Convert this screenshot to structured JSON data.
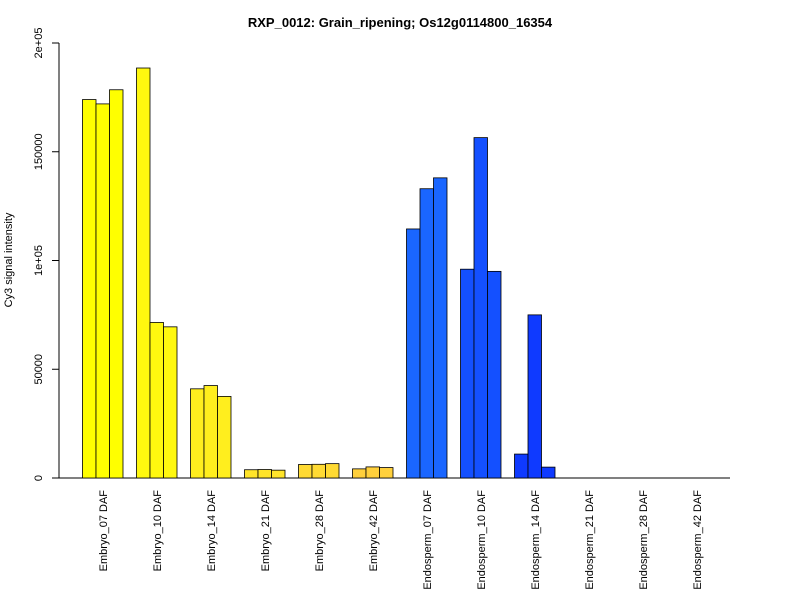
{
  "chart_data": {
    "type": "bar",
    "title": "RXP_0012: Grain_ripening; Os12g0114800_16354",
    "xlabel": "",
    "ylabel": "Cy3 signal intensity",
    "ylim": [
      0,
      200000
    ],
    "yticks": [
      {
        "value": 0,
        "label": "0"
      },
      {
        "value": 50000,
        "label": "50000"
      },
      {
        "value": 100000,
        "label": "1e+05"
      },
      {
        "value": 150000,
        "label": "150000"
      },
      {
        "value": 200000,
        "label": "2e+05"
      }
    ],
    "grid": false,
    "legend": "none",
    "groups": [
      {
        "label": "Embryo_07 DAF",
        "values": [
          174000,
          172000,
          178500
        ],
        "color": "#FFFF00"
      },
      {
        "label": "Embryo_10 DAF",
        "values": [
          188500,
          71500,
          69500
        ],
        "color": "#FFF80F"
      },
      {
        "label": "Embryo_14 DAF",
        "values": [
          41000,
          42500,
          37500
        ],
        "color": "#FFEE1E"
      },
      {
        "label": "Embryo_21 DAF",
        "values": [
          3800,
          3900,
          3600
        ],
        "color": "#FFE42A"
      },
      {
        "label": "Embryo_28 DAF",
        "values": [
          6200,
          6300,
          6600
        ],
        "color": "#FFDA33"
      },
      {
        "label": "Embryo_42 DAF",
        "values": [
          4200,
          5100,
          4800
        ],
        "color": "#FFD03C"
      },
      {
        "label": "Endosperm_07 DAF",
        "values": [
          114500,
          133000,
          138000
        ],
        "color": "#1A66FF"
      },
      {
        "label": "Endosperm_10 DAF",
        "values": [
          96000,
          156500,
          95000
        ],
        "color": "#1450FF"
      },
      {
        "label": "Endosperm_14 DAF",
        "values": [
          11000,
          75000,
          5000
        ],
        "color": "#0F3AFF"
      },
      {
        "label": "Endosperm_21 DAF",
        "values": [
          0,
          0,
          0
        ],
        "color": "#0A2AFF"
      },
      {
        "label": "Endosperm_28 DAF",
        "values": [
          0,
          0,
          0
        ],
        "color": "#0A2AFF"
      },
      {
        "label": "Endosperm_42 DAF",
        "values": [
          0,
          0,
          0
        ],
        "color": "#0A2AFF"
      }
    ]
  }
}
